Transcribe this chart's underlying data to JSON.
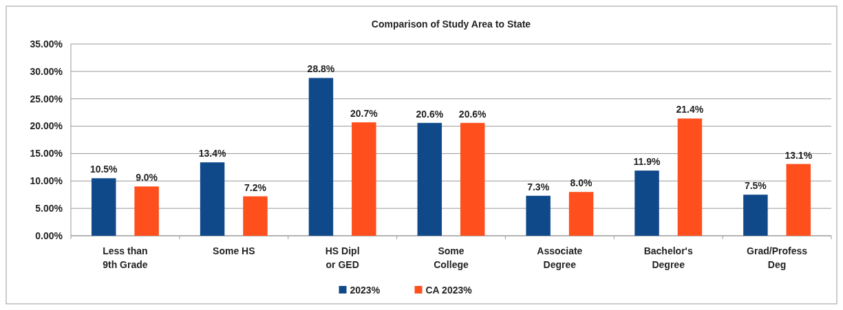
{
  "chart_data": {
    "type": "bar",
    "title": "Comparison of Study Area to State",
    "categories": [
      "Less than 9th Grade",
      "Some HS",
      "HS Dipl or GED",
      "Some College",
      "Associate Degree",
      "Bachelor's Degree",
      "Grad/Profess Deg"
    ],
    "series": [
      {
        "name": "2023%",
        "color": "#10498a",
        "values": [
          10.5,
          13.4,
          28.8,
          20.6,
          7.3,
          11.9,
          7.5
        ],
        "value_labels": [
          "10.5%",
          "13.4%",
          "28.8%",
          "20.6%",
          "7.3%",
          "11.9%",
          "7.5%"
        ]
      },
      {
        "name": "CA 2023%",
        "color": "#fe4f1c",
        "values": [
          9.0,
          7.2,
          20.7,
          20.6,
          8.0,
          21.4,
          13.1
        ],
        "value_labels": [
          "9.0%",
          "7.2%",
          "20.7%",
          "20.6%",
          "8.0%",
          "21.4%",
          "13.1%"
        ]
      }
    ],
    "ylim": [
      0,
      35
    ],
    "yticks": [
      {
        "value": 0,
        "label": "0.00%"
      },
      {
        "value": 5,
        "label": "5.00%"
      },
      {
        "value": 10,
        "label": "10.00%"
      },
      {
        "value": 15,
        "label": "15.00%"
      },
      {
        "value": 20,
        "label": "20.00%"
      },
      {
        "value": 25,
        "label": "25.00%"
      },
      {
        "value": 30,
        "label": "30.00%"
      },
      {
        "value": 35,
        "label": "35.00%"
      }
    ],
    "grid": "y",
    "legend": "bottom"
  }
}
